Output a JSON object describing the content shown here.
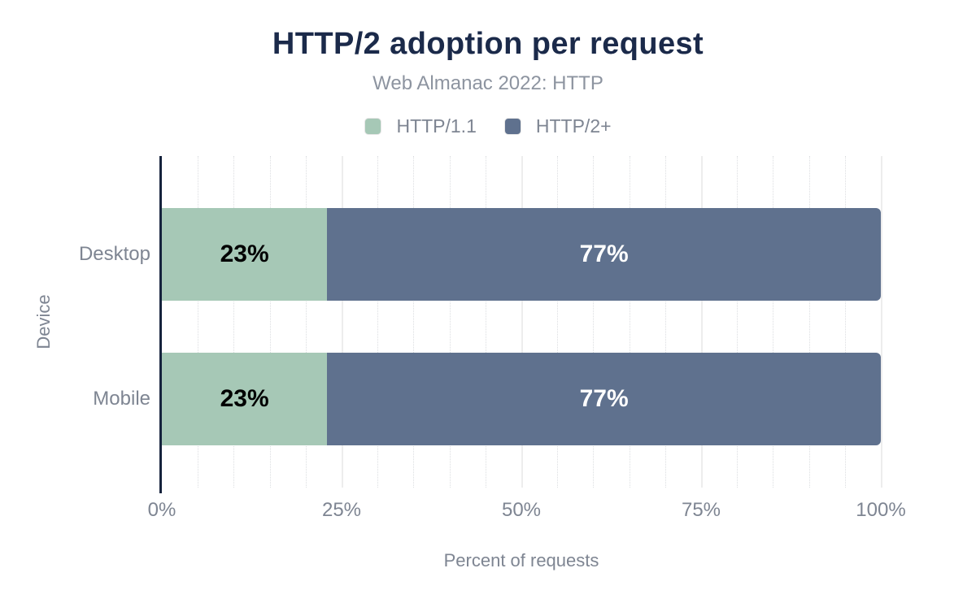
{
  "chart_data": {
    "type": "bar",
    "orientation": "horizontal",
    "stacked": true,
    "title": "HTTP/2 adoption per request",
    "subtitle": "Web Almanac 2022: HTTP",
    "xlabel": "Percent of requests",
    "ylabel": "Device",
    "categories": [
      "Desktop",
      "Mobile"
    ],
    "series": [
      {
        "name": "HTTP/1.1",
        "color": "#a6c8b6",
        "label_color": "#000000",
        "values": [
          23,
          23
        ]
      },
      {
        "name": "HTTP/2+",
        "color": "#5f718e",
        "label_color": "#ffffff",
        "values": [
          77,
          77
        ]
      }
    ],
    "value_suffix": "%",
    "xlim": [
      0,
      100
    ],
    "x_ticks": [
      "0%",
      "25%",
      "50%",
      "75%",
      "100%"
    ],
    "x_tick_values": [
      0,
      25,
      50,
      75,
      100
    ],
    "grid": {
      "minor_step_pct": 5,
      "major_step_pct": 25
    },
    "legend_position": "top"
  },
  "colors": {
    "title_text": "#1b2a4a",
    "axis_line": "#16233d",
    "muted_text": "#7e8592",
    "major_gridline": "#ededed",
    "minor_gridline": "#dcdee1"
  }
}
